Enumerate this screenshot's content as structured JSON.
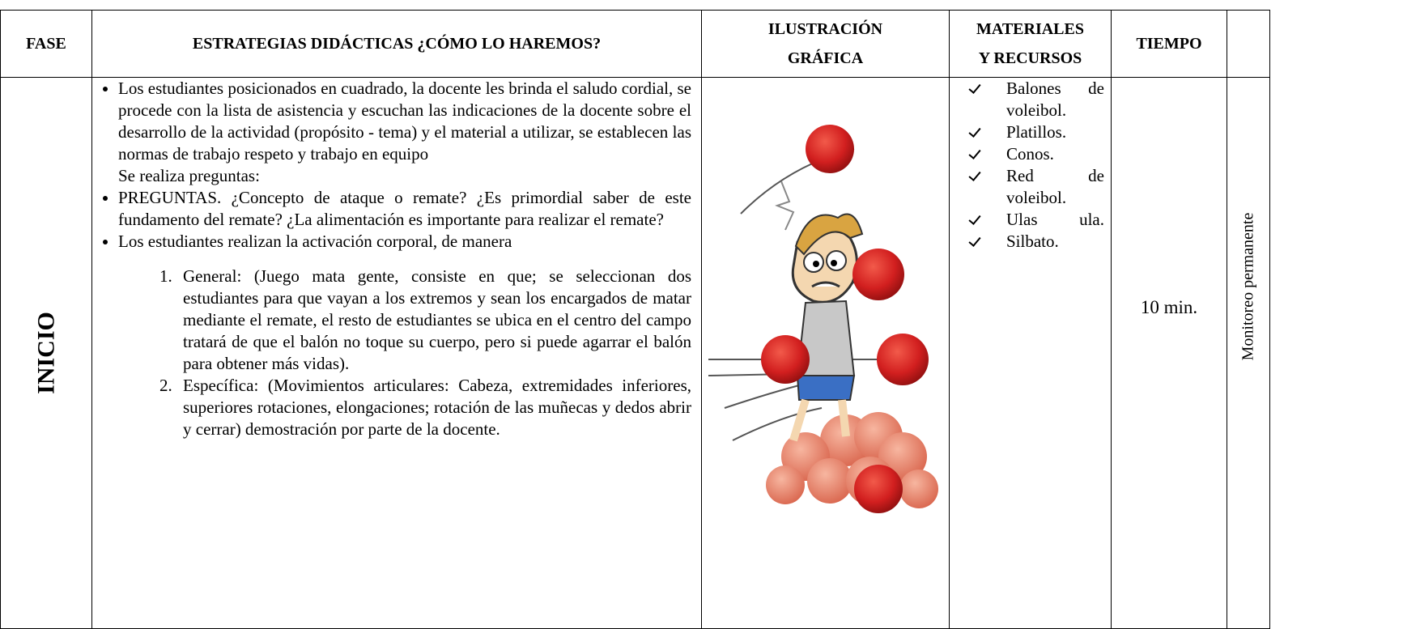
{
  "table": {
    "header": [
      "FASE",
      "ESTRATEGIAS DIDÁCTICAS ¿CÓMO LO HAREMOS?",
      [
        "ILUSTRACIÓN",
        "GRÁFICA"
      ],
      [
        "MATERIALES",
        "Y RECURSOS"
      ],
      "TIEMPO"
    ],
    "rows": [
      {
        "fase": "INICIO",
        "estrategias": [
          {
            "text": "Los estudiantes posicionados en cuadrado, la docente les brinda el saludo cordial, se procede con la lista de asistencia y escuchan las indicaciones de la docente sobre el desarrollo de la actividad (propósito - tema) y el material a utilizar, se establecen las normas de trabajo respeto y trabajo en equipo",
            "note": "Se realiza preguntas:"
          },
          {
            "text": "PREGUNTAS. ¿Concepto de ataque o remate? ¿Es primordial saber de este fundamento del remate? ¿La alimentación es importante para realizar el remate?"
          },
          {
            "text": "Los estudiantes realizan la activación corporal, de manera",
            "steps": [
              "General: (Juego mata gente, consiste en que; se seleccionan dos estudiantes para que vayan a los extremos y sean los encargados de matar mediante el remate, el resto de estudiantes se ubica en el centro del campo tratará de que el balón no toque su cuerpo, pero si puede agarrar el balón para obtener más vidas).",
              "Específica: (Movimientos articulares: Cabeza, extremidades inferiores, superiores rotaciones, elongaciones; rotación de las muñecas y dedos abrir y cerrar) demostración por parte de la docente."
            ]
          }
        ],
        "materiales": [
          "Balones de voleibol.",
          "Platillos.",
          "Conos.",
          "Red de voleibol.",
          "Ulas ula.",
          "Silbato."
        ],
        "tiempo": "10 min.",
        "evaluacion": "Monitoreo permanente"
      }
    ]
  }
}
